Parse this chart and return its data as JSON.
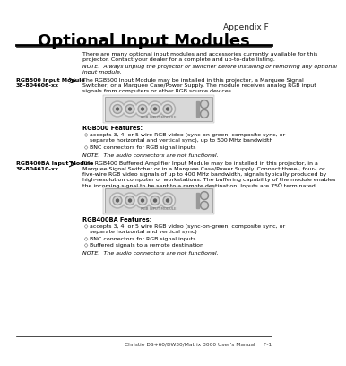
{
  "appendix_label": "Appendix F",
  "title": "Optional Input Modules",
  "intro_text_l1": "There are many optional input modules and accessories currently available for this",
  "intro_text_l2": "projector. Contact your dealer for a complete and up-to-date listing.",
  "note1_l1": "NOTE:  Always unplug the projector or switcher before installing or removing any optional",
  "note1_l2": "input module.",
  "sidebar1_l1": "RGB500 Input Module",
  "sidebar1_l2": "38-804606-xx",
  "body1_l1": "The RGB500 Input Module may be installed in this projector, a Marquee Signal",
  "body1_l2": "Switcher, or a Marquee Case/Power Supply. The module receives analog RGB input",
  "body1_l3": "signals from computers or other RGB source devices.",
  "features1_title": "RGB500 Features:",
  "f1_b1_l1": "accepts 3, 4, or 5 wire RGB video (sync-on-green, composite sync, or",
  "f1_b1_l2": "separate horizontal and vertical sync), up to 500 MHz bandwidth",
  "f1_b2": "BNC connectors for RGB signal inputs",
  "note2": "NOTE:  The audio connectors are not functional.",
  "sidebar2_l1": "RGB400BA Input Module",
  "sidebar2_l2": "38-804610-xx",
  "body2_l1": "The RGB400 Buffered Amplifier Input Module may be installed in this projector, in a",
  "body2_l2": "Marquee Signal Switcher or in a Marquee Case/Power Supply. Connect three-, four-, or",
  "body2_l3": "five-wire RGB video signals of up to 400 MHz bandwidth, signals typically produced by",
  "body2_l4": "high-resolution computer or workstations. The buffering capability of the module enables",
  "body2_l5": "the incoming signal to be sent to a remote destination. Inputs are 75Ω terminated.",
  "features2_title": "RGB400BA Features:",
  "f2_b1_l1": "accepts 3, 4, or 5 wire RGB video (sync-on-green, composite sync, or",
  "f2_b1_l2": "separate horizontal and vertical sync)",
  "f2_b2": "BNC connectors for RGB signal inputs",
  "f2_b3": "Buffered signals to a remote destination",
  "note3": "NOTE:  The audio connectors are not functional.",
  "footer": "Christie DS+60/DW30/Matrix 3000 User's Manual     F-1",
  "bg_color": "#ffffff",
  "text_color": "#000000"
}
